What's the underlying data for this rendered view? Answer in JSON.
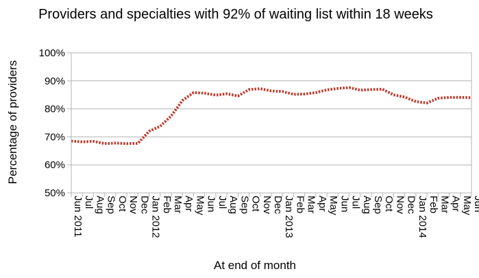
{
  "chart_data": {
    "type": "line",
    "title": "Providers and specialties with 92% of waiting list within 18 weeks",
    "xlabel": "At end of month",
    "ylabel": "Percentage of providers",
    "y_unit": "%",
    "ylim": [
      50,
      100
    ],
    "yticks": [
      "50%",
      "60%",
      "70%",
      "80%",
      "90%",
      "100%"
    ],
    "grid": "horizontal",
    "legend": "none",
    "line_color": "#c0392b",
    "line_style": "dotted",
    "categories": [
      "Jun 2011",
      "Jul",
      "Aug",
      "Sep",
      "Oct",
      "Nov",
      "Dec",
      "Jan 2012",
      "Feb",
      "Mar",
      "Apr",
      "May",
      "Jun",
      "Jul",
      "Aug",
      "Sep",
      "Oct",
      "Nov",
      "Dec",
      "Jan 2013",
      "Feb",
      "Mar",
      "Apr",
      "May",
      "Jun",
      "Jul",
      "Aug",
      "Sep",
      "Oct",
      "Nov",
      "Dec",
      "Jan 2014",
      "Feb",
      "Mar",
      "Apr",
      "May",
      "Jun"
    ],
    "series": [
      {
        "values": [
          68.5,
          68.2,
          68.4,
          67.6,
          67.8,
          67.6,
          67.7,
          72.0,
          73.8,
          77.5,
          83.0,
          85.8,
          85.6,
          84.9,
          85.4,
          84.6,
          86.9,
          87.2,
          86.4,
          86.2,
          85.2,
          85.3,
          85.8,
          86.8,
          87.3,
          87.6,
          86.7,
          86.9,
          87.0,
          85.0,
          84.2,
          82.6,
          82.1,
          83.8,
          84.1,
          84.1,
          84.0
        ]
      }
    ]
  }
}
